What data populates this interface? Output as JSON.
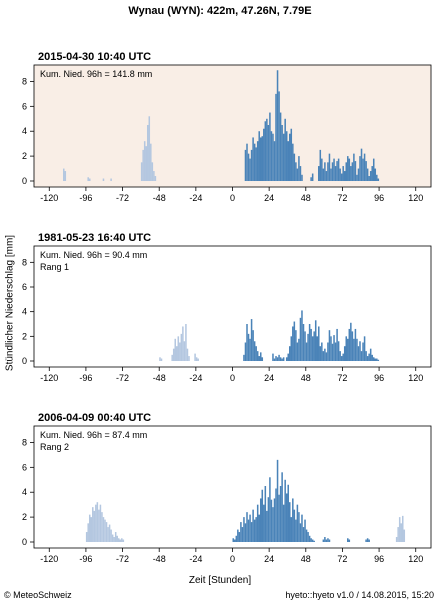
{
  "figure": {
    "title": "Wynau (WYN): 422m, 47.26N, 7.79E",
    "ylabel": "Stündlicher Niederschlag [mm]",
    "xlabel": "Zeit [Stunden]",
    "credit": "© MeteoSchweiz",
    "version": "hyeto::hyeto v1.0 / 14.08.2015, 15:20",
    "colors": {
      "current_bg": "#f9eee6",
      "before": "#b4c7e0",
      "after": "#4a83b8"
    }
  },
  "chart_data": [
    {
      "type": "bar",
      "date": "2015-04-30 10:40 UTC",
      "title": "",
      "annotation": "Kum. Nied. 96h = 141.8 mm",
      "rank": "",
      "ylim": [
        0,
        9
      ],
      "xlim": [
        -130,
        130
      ],
      "xticks": [
        -120,
        -96,
        -72,
        -48,
        -24,
        0,
        24,
        48,
        72,
        96,
        120
      ],
      "yticks": [
        0,
        2,
        4,
        6,
        8
      ],
      "background": "shaded",
      "series": [
        {
          "name": "",
          "x": [
            -110,
            -109,
            -94,
            -93,
            -84,
            -79,
            -59,
            -58,
            -57,
            -56,
            -55,
            -54,
            -53,
            -52,
            -51,
            -50
          ],
          "values": [
            1.0,
            0.8,
            0.3,
            0.2,
            0.2,
            0.2,
            1.5,
            2.5,
            3.2,
            2.8,
            4.5,
            5.2,
            3.0,
            1.5,
            0.8,
            0.4
          ]
        },
        {
          "name": "",
          "x": [
            9,
            10,
            11,
            12,
            13,
            14,
            15,
            16,
            17,
            18,
            19,
            20,
            21,
            22,
            23,
            24,
            25,
            26,
            27,
            28,
            29,
            30,
            31,
            32,
            33,
            34,
            35,
            36,
            37,
            38,
            39,
            40,
            41,
            42,
            43,
            44,
            45,
            46,
            52,
            53,
            57,
            58,
            59,
            60,
            61,
            62,
            63,
            64,
            65,
            66,
            67,
            68,
            69,
            70,
            71,
            72,
            73,
            74,
            75,
            76,
            77,
            78,
            79,
            80,
            81,
            82,
            83,
            84,
            85,
            86,
            87,
            88,
            89,
            90,
            91,
            92,
            93,
            94,
            95,
            96
          ],
          "values": [
            2.5,
            3.0,
            2.2,
            1.8,
            2.5,
            3.5,
            3.0,
            2.7,
            3.2,
            4.0,
            3.5,
            3.6,
            4.2,
            4.8,
            5.0,
            4.5,
            5.5,
            4.0,
            3.8,
            3.2,
            7.0,
            8.9,
            7.2,
            5.5,
            4.5,
            3.8,
            5.0,
            4.0,
            3.2,
            3.8,
            4.2,
            3.0,
            2.2,
            1.5,
            1.0,
            2.0,
            1.2,
            0.5,
            0.3,
            0.6,
            1.2,
            2.5,
            1.8,
            1.0,
            1.5,
            0.8,
            1.5,
            2.2,
            1.0,
            1.5,
            1.8,
            1.2,
            1.6,
            1.8,
            1.0,
            0.6,
            1.2,
            0.8,
            1.5,
            2.0,
            1.8,
            1.2,
            1.5,
            2.2,
            1.6,
            0.5,
            1.0,
            2.0,
            2.6,
            1.8,
            2.2,
            1.6,
            1.0,
            0.4,
            0.8,
            1.2,
            1.8,
            1.0,
            0.5,
            0.2
          ]
        }
      ]
    },
    {
      "type": "bar",
      "date": "1981-05-23 16:40 UTC",
      "title": "",
      "annotation": "Kum. Nied. 96h = 90.4 mm",
      "rank": "Rang 1",
      "ylim": [
        0,
        9
      ],
      "xlim": [
        -130,
        130
      ],
      "xticks": [
        -120,
        -96,
        -72,
        -48,
        -24,
        0,
        24,
        48,
        72,
        96,
        120
      ],
      "yticks": [
        0,
        2,
        4,
        6,
        8
      ],
      "background": "white",
      "series": [
        {
          "name": "",
          "x": [
            -47,
            -46,
            -39,
            -38,
            -37,
            -36,
            -35,
            -34,
            -33,
            -32,
            -31,
            -30,
            -29,
            -28,
            -24,
            -23,
            -22
          ],
          "values": [
            0.3,
            0.2,
            0.5,
            1.0,
            1.8,
            1.2,
            2.0,
            1.5,
            2.2,
            2.8,
            1.6,
            3.0,
            1.0,
            0.4,
            0.6,
            0.3,
            0.2
          ]
        },
        {
          "name": "",
          "x": [
            8,
            9,
            10,
            11,
            12,
            13,
            14,
            15,
            16,
            17,
            18,
            19,
            20,
            27,
            28,
            29,
            30,
            31,
            32,
            33,
            34,
            36,
            37,
            38,
            39,
            40,
            41,
            42,
            43,
            44,
            45,
            46,
            47,
            48,
            49,
            50,
            51,
            52,
            53,
            54,
            55,
            56,
            57,
            58,
            59,
            60,
            61,
            62,
            63,
            64,
            65,
            66,
            67,
            68,
            69,
            70,
            71,
            72,
            73,
            74,
            75,
            76,
            77,
            78,
            79,
            80,
            81,
            82,
            83,
            84,
            85,
            86,
            87,
            88,
            89,
            90,
            91,
            92,
            93,
            94,
            95,
            96
          ],
          "values": [
            0.5,
            1.5,
            3.0,
            2.2,
            1.8,
            3.4,
            2.5,
            1.6,
            1.2,
            0.8,
            0.4,
            0.7,
            0.3,
            0.6,
            0.2,
            0.4,
            0.3,
            0.5,
            0.3,
            0.2,
            0.3,
            0.3,
            0.6,
            1.2,
            2.0,
            2.8,
            3.2,
            2.5,
            1.5,
            1.8,
            3.5,
            4.1,
            3.0,
            2.4,
            1.5,
            2.2,
            3.0,
            2.6,
            2.0,
            2.4,
            3.3,
            2.0,
            2.8,
            1.2,
            1.5,
            0.8,
            1.0,
            0.7,
            1.5,
            2.5,
            2.0,
            1.4,
            2.1,
            1.5,
            2.6,
            1.6,
            0.8,
            0.4,
            0.6,
            1.2,
            2.0,
            1.8,
            2.6,
            3.1,
            2.4,
            1.8,
            2.6,
            1.8,
            1.2,
            1.6,
            0.8,
            1.5,
            2.0,
            0.8,
            0.4,
            0.6,
            1.0,
            0.5,
            0.3,
            0.2,
            0.2,
            0.1
          ]
        }
      ]
    },
    {
      "type": "bar",
      "date": "2006-04-09 00:40 UTC",
      "title": "",
      "annotation": "Kum. Nied. 96h = 87.4 mm",
      "rank": "Rang 2",
      "ylim": [
        0,
        9
      ],
      "xlim": [
        -130,
        130
      ],
      "xticks": [
        -120,
        -96,
        -72,
        -48,
        -24,
        0,
        24,
        48,
        72,
        96,
        120
      ],
      "yticks": [
        0,
        2,
        4,
        6,
        8
      ],
      "background": "white",
      "series": [
        {
          "name": "",
          "x": [
            -95,
            -94,
            -93,
            -92,
            -91,
            -90,
            -89,
            -88,
            -87,
            -86,
            -85,
            -84,
            -83,
            -82,
            -81,
            -80,
            -79,
            -78,
            -77,
            -76,
            -75,
            -74,
            -73,
            -72,
            -71,
            108,
            109,
            110,
            111,
            112,
            113
          ],
          "values": [
            0.8,
            1.5,
            2.2,
            2.0,
            2.8,
            2.5,
            3.0,
            3.2,
            2.6,
            3.0,
            2.4,
            2.0,
            1.8,
            1.6,
            1.2,
            1.4,
            1.0,
            0.6,
            0.4,
            0.8,
            0.5,
            0.3,
            0.2,
            0.3,
            0.2,
            0.4,
            1.2,
            2.0,
            1.5,
            2.1,
            1.0
          ]
        },
        {
          "name": "",
          "x": [
            1,
            2,
            3,
            4,
            5,
            6,
            7,
            8,
            9,
            10,
            11,
            12,
            13,
            14,
            15,
            16,
            17,
            18,
            19,
            20,
            21,
            22,
            23,
            24,
            25,
            26,
            27,
            28,
            29,
            30,
            31,
            32,
            33,
            34,
            35,
            36,
            37,
            38,
            39,
            40,
            41,
            42,
            43,
            44,
            45,
            46,
            47,
            48,
            49,
            50,
            51,
            52,
            53,
            54,
            60,
            61,
            62,
            63,
            64,
            76,
            77,
            88,
            89,
            90
          ],
          "values": [
            0.3,
            0.2,
            0.5,
            1.0,
            0.8,
            1.6,
            1.2,
            2.0,
            1.5,
            2.4,
            1.8,
            2.2,
            1.6,
            2.6,
            1.8,
            2.0,
            3.0,
            2.2,
            3.5,
            4.2,
            3.0,
            4.5,
            2.5,
            3.6,
            5.2,
            3.4,
            2.8,
            3.5,
            4.3,
            6.6,
            3.8,
            4.5,
            5.6,
            3.0,
            5.0,
            3.9,
            4.6,
            3.2,
            2.0,
            3.5,
            2.6,
            1.8,
            3.0,
            2.4,
            1.5,
            2.2,
            1.2,
            1.8,
            1.0,
            0.8,
            0.5,
            0.3,
            0.2,
            0.1,
            0.2,
            0.4,
            0.2,
            0.3,
            0.2,
            0.3,
            0.2,
            0.2,
            0.3,
            0.2
          ]
        }
      ]
    }
  ]
}
